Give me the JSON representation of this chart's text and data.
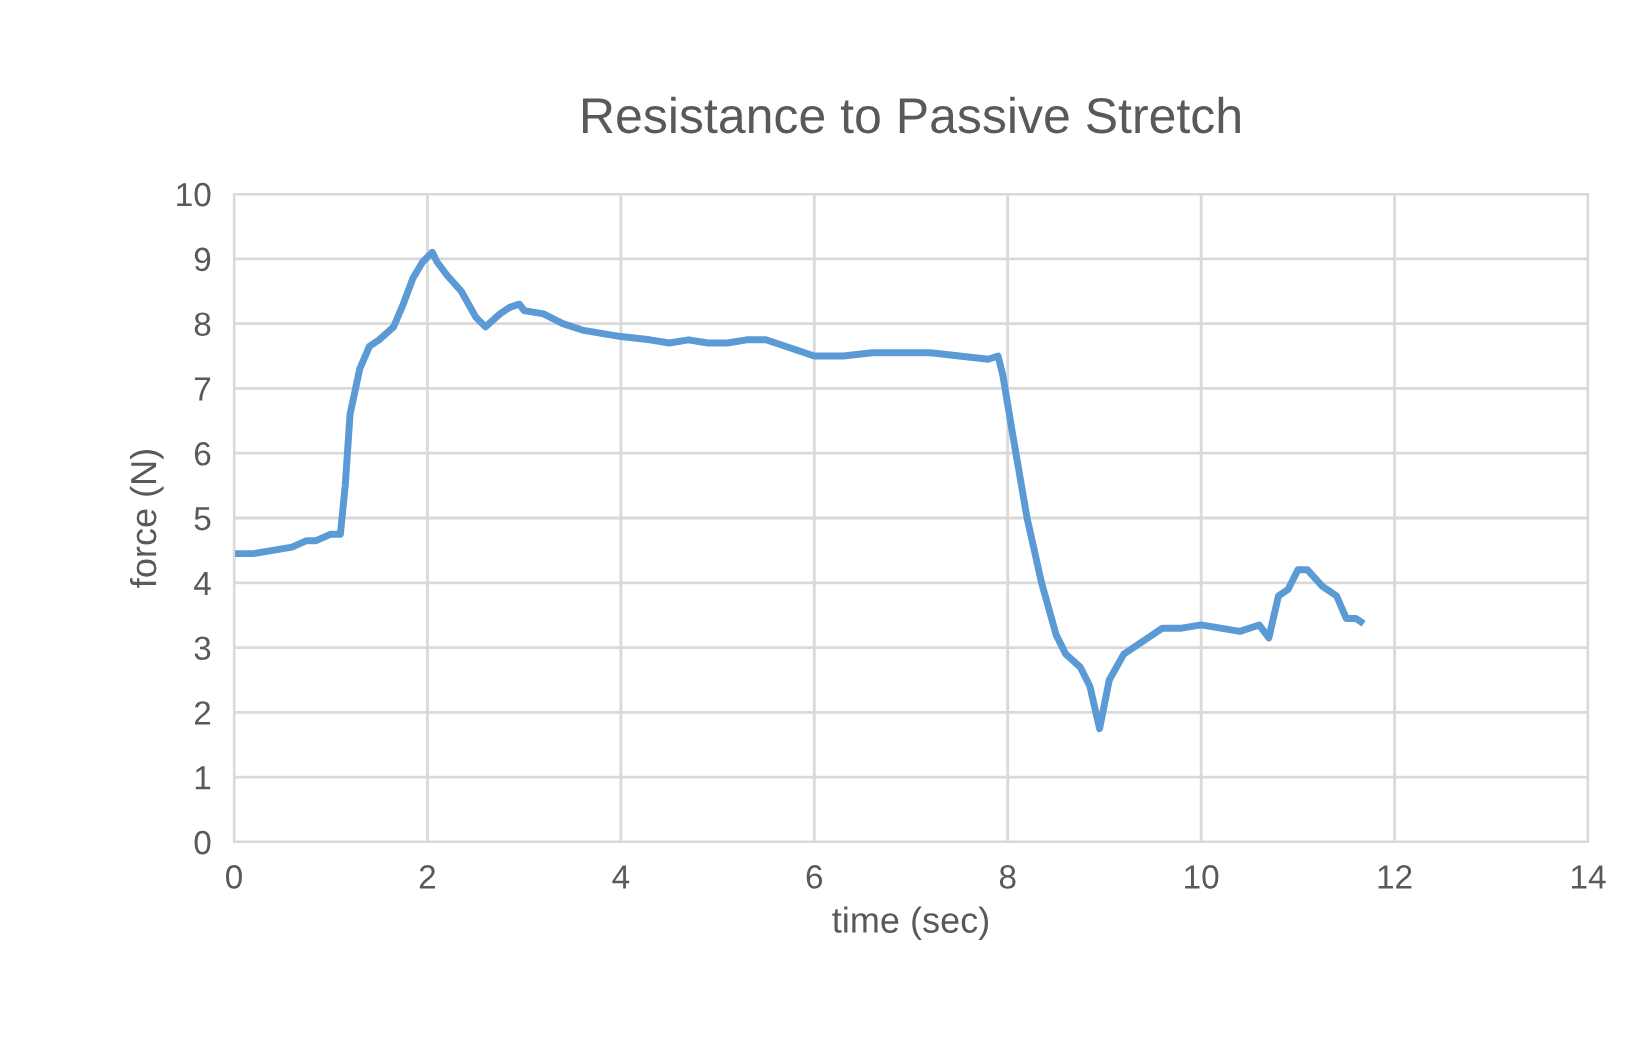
{
  "chart_data": {
    "type": "line",
    "title": "Resistance to Passive Stretch",
    "xlabel": "time (sec)",
    "ylabel": "force (N)",
    "xlim": [
      0,
      14
    ],
    "xticks": [
      0,
      2,
      4,
      6,
      8,
      10,
      12,
      14
    ],
    "ylim": [
      0,
      10
    ],
    "yticks": [
      0,
      1,
      2,
      3,
      4,
      5,
      6,
      7,
      8,
      9,
      10
    ],
    "grid": true,
    "marker": "none",
    "line_style": "solid",
    "series": [
      {
        "color": "#5b9bd5",
        "x": [
          0,
          0.2,
          0.4,
          0.6,
          0.75,
          0.85,
          1.0,
          1.1,
          1.15,
          1.2,
          1.3,
          1.4,
          1.5,
          1.65,
          1.75,
          1.85,
          1.95,
          2.05,
          2.1,
          2.2,
          2.35,
          2.5,
          2.6,
          2.75,
          2.85,
          2.95,
          3.0,
          3.2,
          3.4,
          3.6,
          3.8,
          4.0,
          4.3,
          4.5,
          4.7,
          4.9,
          5.1,
          5.3,
          5.5,
          5.7,
          6.0,
          6.3,
          6.6,
          6.9,
          7.2,
          7.5,
          7.8,
          7.9,
          7.95,
          8.05,
          8.2,
          8.35,
          8.5,
          8.6,
          8.75,
          8.85,
          8.95,
          9.05,
          9.2,
          9.4,
          9.6,
          9.8,
          10.0,
          10.2,
          10.4,
          10.6,
          10.7,
          10.8,
          10.9,
          11.0,
          11.1,
          11.25,
          11.4,
          11.5,
          11.6,
          11.65
        ],
        "values": [
          4.45,
          4.45,
          4.5,
          4.55,
          4.65,
          4.65,
          4.75,
          4.75,
          5.5,
          6.6,
          7.3,
          7.65,
          7.75,
          7.95,
          8.3,
          8.7,
          8.95,
          9.1,
          8.95,
          8.75,
          8.5,
          8.1,
          7.95,
          8.15,
          8.25,
          8.3,
          8.2,
          8.15,
          8.0,
          7.9,
          7.85,
          7.8,
          7.75,
          7.7,
          7.75,
          7.7,
          7.7,
          7.75,
          7.75,
          7.65,
          7.5,
          7.5,
          7.55,
          7.55,
          7.55,
          7.5,
          7.45,
          7.5,
          7.2,
          6.3,
          5.0,
          4.0,
          3.2,
          2.9,
          2.7,
          2.4,
          1.75,
          2.5,
          2.9,
          3.1,
          3.3,
          3.3,
          3.35,
          3.3,
          3.25,
          3.35,
          3.15,
          3.8,
          3.9,
          4.2,
          4.2,
          3.95,
          3.8,
          3.45,
          3.45,
          3.4
        ]
      }
    ]
  }
}
